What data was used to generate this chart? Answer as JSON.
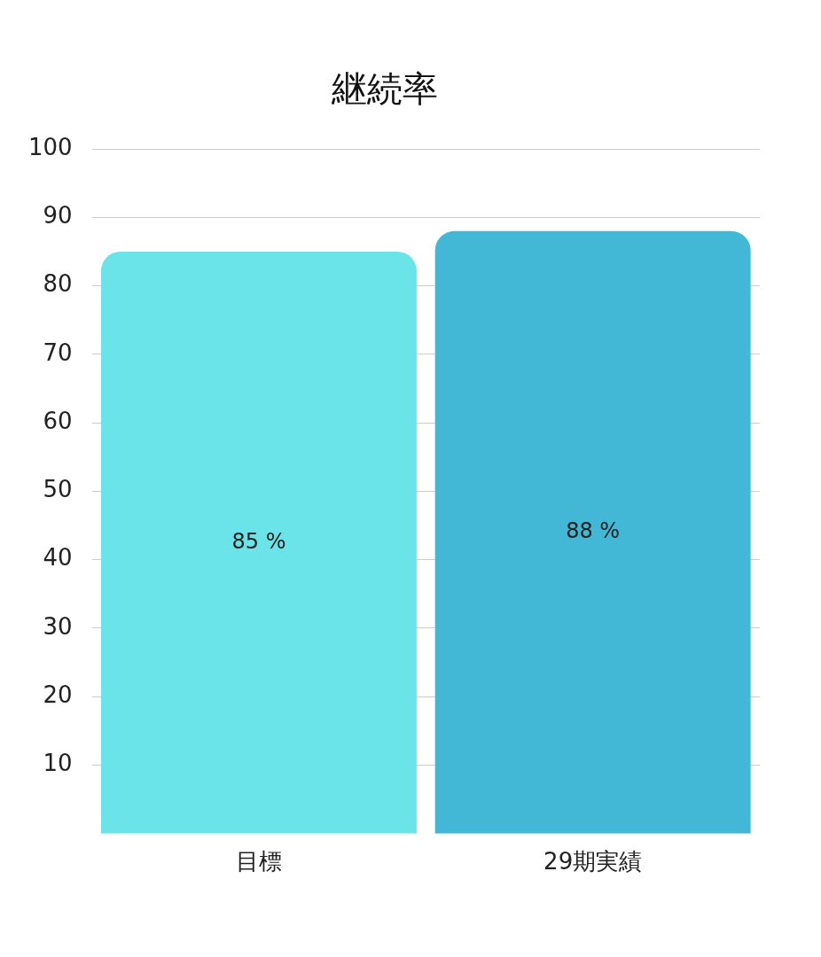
{
  "chart_data": {
    "type": "bar",
    "title": "継続率",
    "categories": [
      "目標",
      "29期実績"
    ],
    "values": [
      85,
      88
    ],
    "colors": [
      "#6ae4e8",
      "#43b7d6"
    ],
    "value_labels": [
      "85 %",
      "88 %"
    ],
    "ylim": [
      0,
      100
    ],
    "yticks": [
      10,
      20,
      30,
      40,
      50,
      60,
      70,
      80,
      90,
      100
    ],
    "grid": "y",
    "legend": false
  }
}
